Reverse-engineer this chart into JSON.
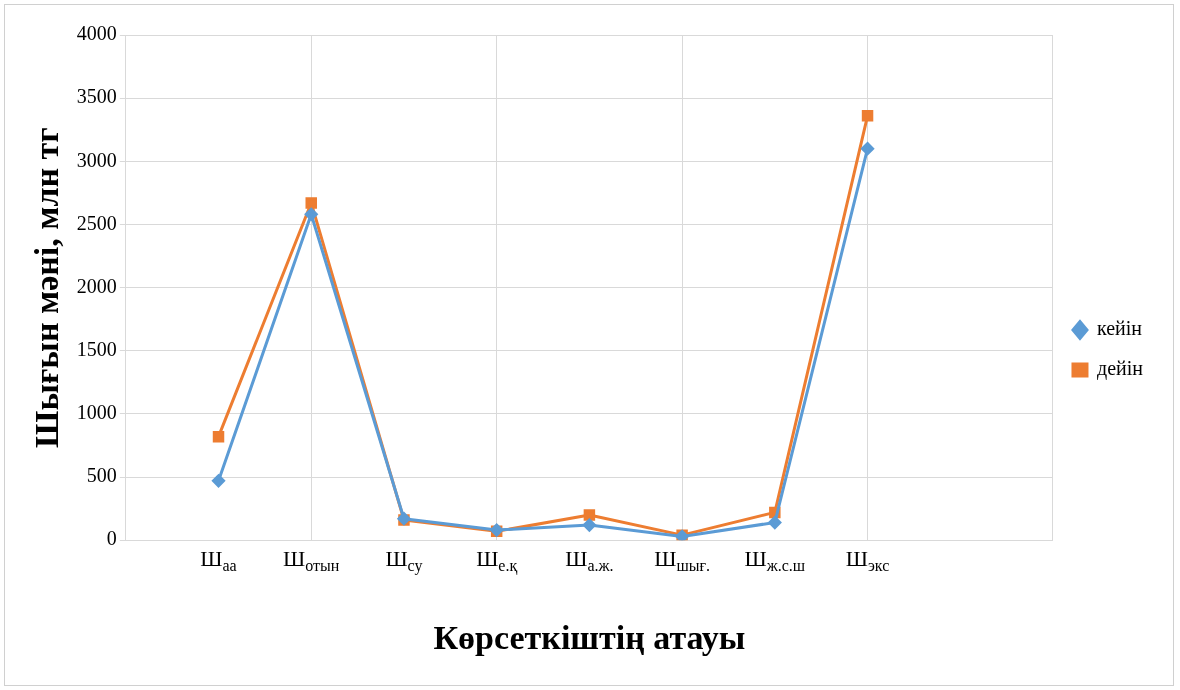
{
  "chart_data": {
    "type": "line",
    "xlabel": "Көрсеткіштің атауы",
    "ylabel": "Шығын мәні, млн тг",
    "categories": [
      null,
      "Ш$_{аа}$",
      "Ш$_{отын}$",
      "Ш$_{су}$",
      "Ш$_{е.қ}$",
      "Ш$_{а.ж.}$",
      "Ш$_{шығ.}$",
      "Ш$_{ж.с.ш}$",
      "Ш$_{экс}$",
      null,
      null
    ],
    "series": [
      {
        "name": "дейін",
        "color": "#ed7d31",
        "marker": "square",
        "values": [
          null,
          820,
          2670,
          160,
          70,
          200,
          40,
          220,
          3360,
          null,
          null
        ]
      },
      {
        "name": "кейін",
        "color": "#5b9bd5",
        "marker": "diamond",
        "values": [
          null,
          470,
          2580,
          170,
          80,
          120,
          30,
          140,
          3100,
          null,
          null
        ]
      }
    ],
    "ylim": [
      0,
      4000
    ],
    "yticks": [
      0,
      500,
      1000,
      1500,
      2000,
      2500,
      3000,
      3500,
      4000
    ],
    "grid": true,
    "legend": "right"
  }
}
